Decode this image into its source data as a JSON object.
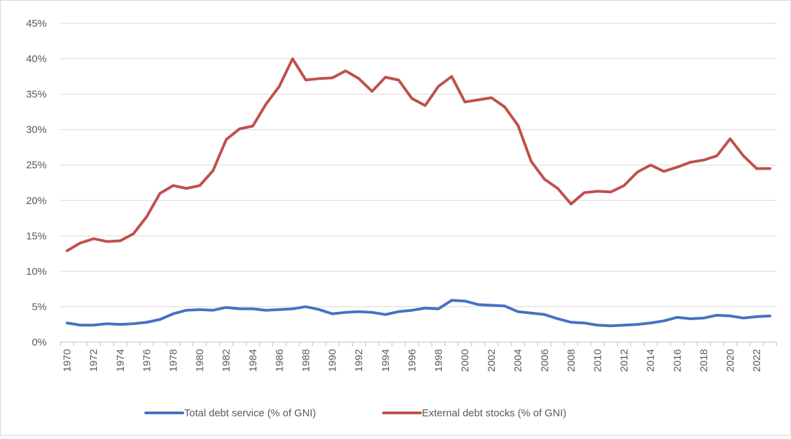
{
  "chart_data": {
    "type": "line",
    "title": "",
    "xlabel": "",
    "ylabel": "",
    "ylim": [
      0,
      45
    ],
    "y_tick_step": 5,
    "y_tick_format": "percent",
    "y_ticks": [
      "0%",
      "5%",
      "10%",
      "15%",
      "20%",
      "25%",
      "30%",
      "35%",
      "40%",
      "45%"
    ],
    "grid": "horizontal",
    "legend_position": "bottom",
    "x": [
      1970,
      1971,
      1972,
      1973,
      1974,
      1975,
      1976,
      1977,
      1978,
      1979,
      1980,
      1981,
      1982,
      1983,
      1984,
      1985,
      1986,
      1987,
      1988,
      1989,
      1990,
      1991,
      1992,
      1993,
      1994,
      1995,
      1996,
      1997,
      1998,
      1999,
      2000,
      2001,
      2002,
      2003,
      2004,
      2005,
      2006,
      2007,
      2008,
      2009,
      2010,
      2011,
      2012,
      2013,
      2014,
      2015,
      2016,
      2017,
      2018,
      2019,
      2020,
      2021,
      2022,
      2023
    ],
    "x_tick_labels": [
      "1970",
      "1972",
      "1974",
      "1976",
      "1978",
      "1980",
      "1982",
      "1984",
      "1986",
      "1988",
      "1990",
      "1992",
      "1994",
      "1996",
      "1998",
      "2000",
      "2002",
      "2004",
      "2006",
      "2008",
      "2010",
      "2012",
      "2014",
      "2016",
      "2018",
      "2020",
      "2022"
    ],
    "series": [
      {
        "name": "Total debt service (% of GNI)",
        "color": "#4472c4",
        "values": [
          2.7,
          2.4,
          2.4,
          2.6,
          2.5,
          2.6,
          2.8,
          3.2,
          4.0,
          4.5,
          4.6,
          4.5,
          4.9,
          4.7,
          4.7,
          4.5,
          4.6,
          4.7,
          5.0,
          4.6,
          4.0,
          4.2,
          4.3,
          4.2,
          3.9,
          4.3,
          4.5,
          4.8,
          4.7,
          5.9,
          5.8,
          5.3,
          5.2,
          5.1,
          4.3,
          4.1,
          3.9,
          3.3,
          2.8,
          2.7,
          2.4,
          2.3,
          2.4,
          2.5,
          2.7,
          3.0,
          3.5,
          3.3,
          3.4,
          3.8,
          3.7,
          3.4,
          3.6,
          3.7
        ]
      },
      {
        "name": "External debt stocks (% of GNI)",
        "color": "#c0504d",
        "values": [
          12.9,
          14.0,
          14.6,
          14.2,
          14.3,
          15.3,
          17.7,
          21.0,
          22.1,
          21.7,
          22.1,
          24.2,
          28.6,
          30.1,
          30.5,
          33.6,
          36.1,
          40.0,
          37.0,
          37.2,
          37.3,
          38.3,
          37.2,
          35.4,
          37.4,
          37.0,
          34.4,
          33.4,
          36.1,
          37.5,
          33.9,
          34.2,
          34.5,
          33.2,
          30.6,
          25.5,
          23.0,
          21.7,
          19.5,
          21.1,
          21.3,
          21.2,
          22.1,
          24.0,
          25.0,
          24.1,
          24.7,
          25.4,
          25.7,
          26.3,
          28.7,
          26.3,
          24.5,
          24.5
        ]
      }
    ]
  }
}
